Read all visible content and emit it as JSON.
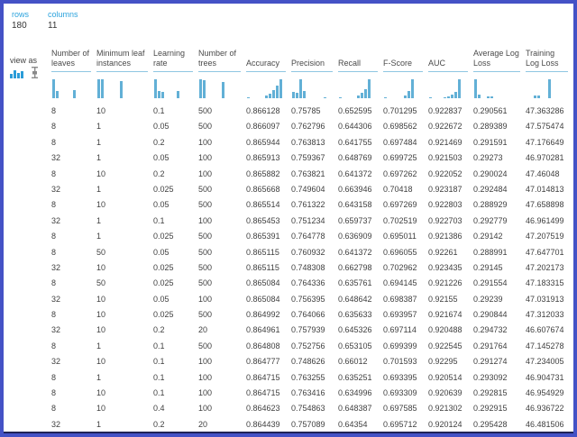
{
  "meta": {
    "rows_label": "rows",
    "rows_value": "180",
    "columns_label": "columns",
    "columns_value": "11",
    "view_as_label": "view as"
  },
  "colors": {
    "accent_blue": "#2ca3dd",
    "bar_blue": "#62b0d6",
    "frame_border": "#4452c6",
    "bottom_line": "#1e2357",
    "header_underline": "#8fc6e2"
  },
  "icons": [
    {
      "name": "histogram-view-icon"
    },
    {
      "name": "boxplot-view-icon"
    }
  ],
  "chart_data": {
    "type": "table",
    "title": "Dataset visualization (180 rows, 11 columns)",
    "histograms": [
      {
        "column": "Number of leaves",
        "bars": [
          [
            1,
            100
          ],
          [
            5,
            38
          ],
          [
            24,
            45
          ]
        ]
      },
      {
        "column": "Minimum leaf instances",
        "bars": [
          [
            1,
            100
          ],
          [
            5,
            100
          ],
          [
            26,
            92
          ]
        ]
      },
      {
        "column": "Learning rate",
        "bars": [
          [
            1,
            100
          ],
          [
            5,
            36
          ],
          [
            9,
            33
          ],
          [
            26,
            40
          ]
        ]
      },
      {
        "column": "Number of trees",
        "bars": [
          [
            1,
            100
          ],
          [
            5,
            97
          ],
          [
            26,
            85
          ]
        ]
      },
      {
        "column": "Accuracy",
        "bars": [
          [
            1,
            7
          ],
          [
            21,
            14
          ],
          [
            25,
            25
          ],
          [
            29,
            42
          ],
          [
            33,
            65
          ],
          [
            37,
            100
          ]
        ]
      },
      {
        "column": "Precision",
        "bars": [
          [
            1,
            32
          ],
          [
            5,
            27
          ],
          [
            9,
            100
          ],
          [
            13,
            36
          ],
          [
            36,
            6
          ]
        ]
      },
      {
        "column": "Recall",
        "bars": [
          [
            1,
            6
          ],
          [
            21,
            12
          ],
          [
            25,
            28
          ],
          [
            29,
            48
          ],
          [
            33,
            100
          ]
        ]
      },
      {
        "column": "F-Score",
        "bars": [
          [
            1,
            6
          ],
          [
            23,
            16
          ],
          [
            27,
            38
          ],
          [
            31,
            100
          ]
        ]
      },
      {
        "column": "AUC",
        "bars": [
          [
            1,
            6
          ],
          [
            17,
            7
          ],
          [
            21,
            10
          ],
          [
            25,
            17
          ],
          [
            29,
            32
          ],
          [
            33,
            100
          ]
        ]
      },
      {
        "column": "Average Log Loss",
        "bars": [
          [
            1,
            100
          ],
          [
            5,
            20
          ],
          [
            15,
            9
          ],
          [
            19,
            8
          ]
        ]
      },
      {
        "column": "Training Log Loss",
        "bars": [
          [
            9,
            12
          ],
          [
            13,
            16
          ],
          [
            25,
            100
          ]
        ]
      }
    ]
  },
  "table": {
    "columns": [
      "Number of leaves",
      "Minimum leaf instances",
      "Learning rate",
      "Number of trees",
      "Accuracy",
      "Precision",
      "Recall",
      "F-Score",
      "AUC",
      "Average Log Loss",
      "Training Log Loss"
    ],
    "rows": [
      [
        "8",
        "10",
        "0.1",
        "500",
        "0.866128",
        "0.75785",
        "0.652595",
        "0.701295",
        "0.922837",
        "0.290561",
        "47.363286"
      ],
      [
        "8",
        "1",
        "0.05",
        "500",
        "0.866097",
        "0.762796",
        "0.644306",
        "0.698562",
        "0.922672",
        "0.289389",
        "47.575474"
      ],
      [
        "8",
        "1",
        "0.2",
        "100",
        "0.865944",
        "0.763813",
        "0.641755",
        "0.697484",
        "0.921469",
        "0.291591",
        "47.176649"
      ],
      [
        "32",
        "1",
        "0.05",
        "100",
        "0.865913",
        "0.759367",
        "0.648769",
        "0.699725",
        "0.921503",
        "0.29273",
        "46.970281"
      ],
      [
        "8",
        "10",
        "0.2",
        "100",
        "0.865882",
        "0.763821",
        "0.641372",
        "0.697262",
        "0.922052",
        "0.290024",
        "47.46048"
      ],
      [
        "32",
        "1",
        "0.025",
        "500",
        "0.865668",
        "0.749604",
        "0.663946",
        "0.70418",
        "0.923187",
        "0.292484",
        "47.014813"
      ],
      [
        "8",
        "10",
        "0.05",
        "500",
        "0.865514",
        "0.761322",
        "0.643158",
        "0.697269",
        "0.922803",
        "0.288929",
        "47.658898"
      ],
      [
        "32",
        "1",
        "0.1",
        "100",
        "0.865453",
        "0.751234",
        "0.659737",
        "0.702519",
        "0.922703",
        "0.292779",
        "46.961499"
      ],
      [
        "8",
        "1",
        "0.025",
        "500",
        "0.865391",
        "0.764778",
        "0.636909",
        "0.695011",
        "0.921386",
        "0.29142",
        "47.207519"
      ],
      [
        "8",
        "50",
        "0.05",
        "500",
        "0.865115",
        "0.760932",
        "0.641372",
        "0.696055",
        "0.92261",
        "0.288991",
        "47.647701"
      ],
      [
        "32",
        "10",
        "0.025",
        "500",
        "0.865115",
        "0.748308",
        "0.662798",
        "0.702962",
        "0.923435",
        "0.29145",
        "47.202173"
      ],
      [
        "8",
        "50",
        "0.025",
        "500",
        "0.865084",
        "0.764336",
        "0.635761",
        "0.694145",
        "0.921226",
        "0.291554",
        "47.183315"
      ],
      [
        "32",
        "10",
        "0.05",
        "100",
        "0.865084",
        "0.756395",
        "0.648642",
        "0.698387",
        "0.92155",
        "0.29239",
        "47.031913"
      ],
      [
        "8",
        "10",
        "0.025",
        "500",
        "0.864992",
        "0.764066",
        "0.635633",
        "0.693957",
        "0.921674",
        "0.290844",
        "47.312033"
      ],
      [
        "32",
        "10",
        "0.2",
        "20",
        "0.864961",
        "0.757939",
        "0.645326",
        "0.697114",
        "0.920488",
        "0.294732",
        "46.607674"
      ],
      [
        "8",
        "1",
        "0.1",
        "500",
        "0.864808",
        "0.752756",
        "0.653105",
        "0.699399",
        "0.922545",
        "0.291764",
        "47.145278"
      ],
      [
        "32",
        "10",
        "0.1",
        "100",
        "0.864777",
        "0.748626",
        "0.66012",
        "0.701593",
        "0.92295",
        "0.291274",
        "47.234005"
      ],
      [
        "8",
        "1",
        "0.1",
        "100",
        "0.864715",
        "0.763255",
        "0.635251",
        "0.693395",
        "0.920514",
        "0.293092",
        "46.904731"
      ],
      [
        "8",
        "10",
        "0.1",
        "100",
        "0.864715",
        "0.763416",
        "0.634996",
        "0.693309",
        "0.920639",
        "0.292815",
        "46.954929"
      ],
      [
        "8",
        "10",
        "0.4",
        "100",
        "0.864623",
        "0.754863",
        "0.648387",
        "0.697585",
        "0.921302",
        "0.292915",
        "46.936722"
      ],
      [
        "32",
        "1",
        "0.2",
        "20",
        "0.864439",
        "0.757089",
        "0.64354",
        "0.695712",
        "0.920124",
        "0.295428",
        "46.481506"
      ]
    ]
  }
}
